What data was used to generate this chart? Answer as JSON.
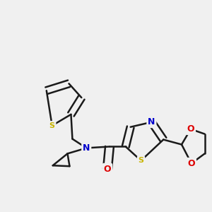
{
  "background_color": "#f0f0f0",
  "bond_color": "#1a1a1a",
  "bond_width": 1.8,
  "atom_colors": {
    "S": "#c8b400",
    "N": "#0000cc",
    "O": "#dd0000",
    "C": "#1a1a1a"
  },
  "figsize": [
    3.0,
    3.0
  ],
  "dpi": 100
}
